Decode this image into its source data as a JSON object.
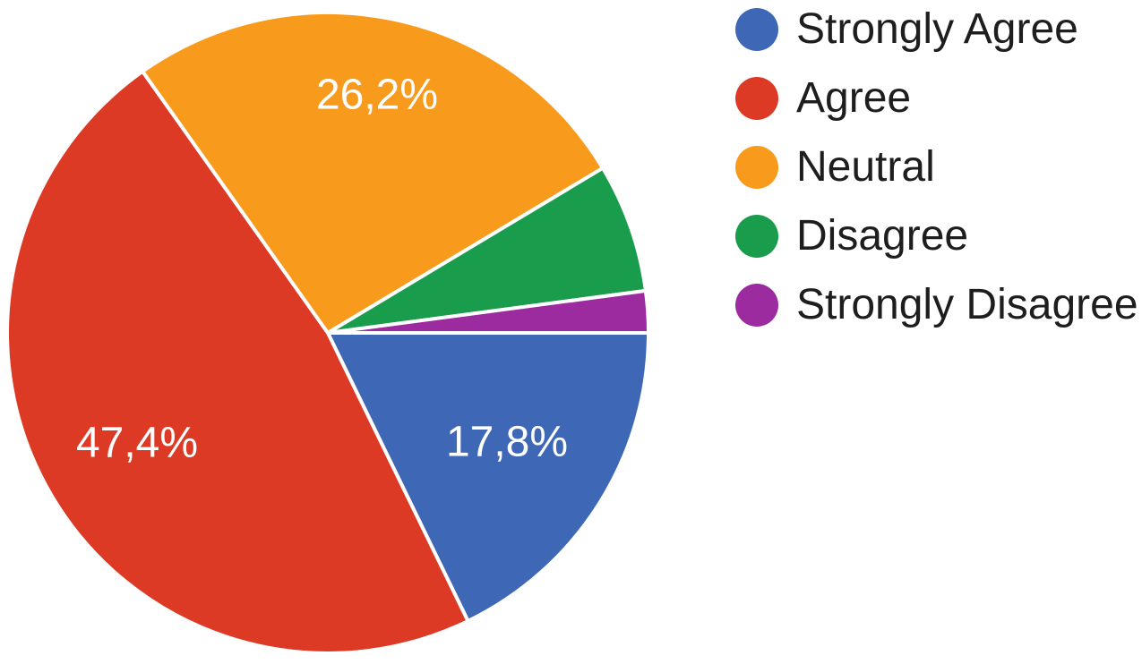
{
  "background_color": "#ffffff",
  "chart_data": {
    "type": "pie",
    "title": "",
    "legend_position": "right",
    "legend_text_color": "#1e1e1e",
    "label_color": "#ffffff",
    "separator_color": "#ffffff",
    "start_angle_deg": 0,
    "direction": "clockwise",
    "categories": [
      "Strongly Agree",
      "Agree",
      "Neutral",
      "Disagree",
      "Strongly Disagree"
    ],
    "values": [
      17.8,
      47.4,
      26.2,
      6.5,
      2.1
    ],
    "slices": [
      {
        "label": "Strongly Agree",
        "value": 17.8,
        "display_label": "17,8%",
        "color": "#3e68b6"
      },
      {
        "label": "Agree",
        "value": 47.4,
        "display_label": "47,4%",
        "color": "#dc3a25"
      },
      {
        "label": "Neutral",
        "value": 26.2,
        "display_label": "26,2%",
        "color": "#f89b1d"
      },
      {
        "label": "Disagree",
        "value": 6.5,
        "display_label": "",
        "color": "#199c4b"
      },
      {
        "label": "Strongly Disagree",
        "value": 2.1,
        "display_label": "",
        "color": "#9c2ba0"
      }
    ]
  }
}
